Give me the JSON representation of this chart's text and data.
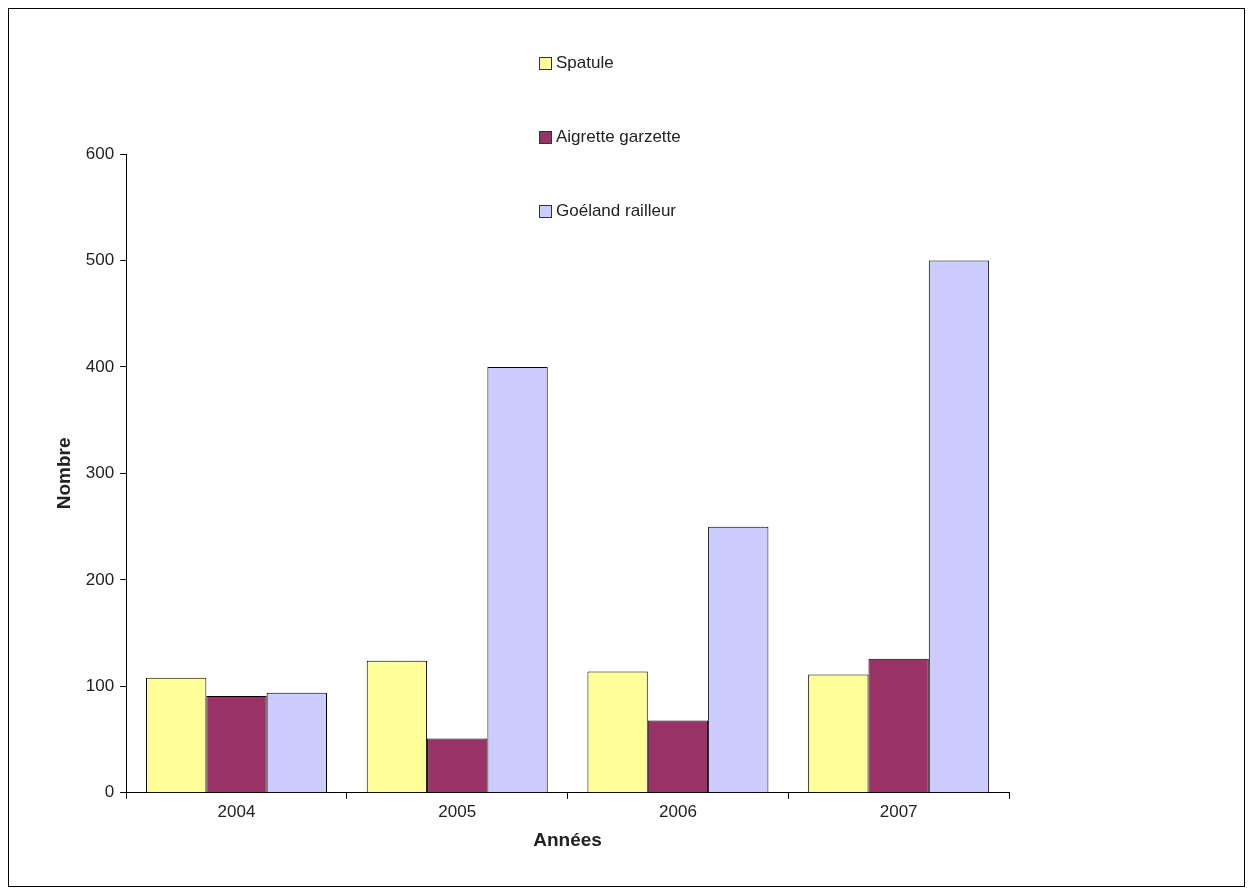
{
  "chart_data": {
    "type": "bar",
    "xlabel": "Années",
    "ylabel": "Nombre",
    "categories": [
      "2004",
      "2005",
      "2006",
      "2007"
    ],
    "series": [
      {
        "name": "Spatule",
        "color": "#ffff99",
        "values": [
          108,
          124,
          114,
          111
        ]
      },
      {
        "name": "Aigrette garzette",
        "color": "#993366",
        "values": [
          91,
          51,
          68,
          126
        ]
      },
      {
        "name": "Goéland railleur",
        "color": "#ccccff",
        "values": [
          94,
          400,
          250,
          500
        ]
      }
    ],
    "ylim": [
      0,
      600
    ],
    "yticks": [
      0,
      100,
      200,
      300,
      400,
      500,
      600
    ],
    "legend": "top"
  }
}
